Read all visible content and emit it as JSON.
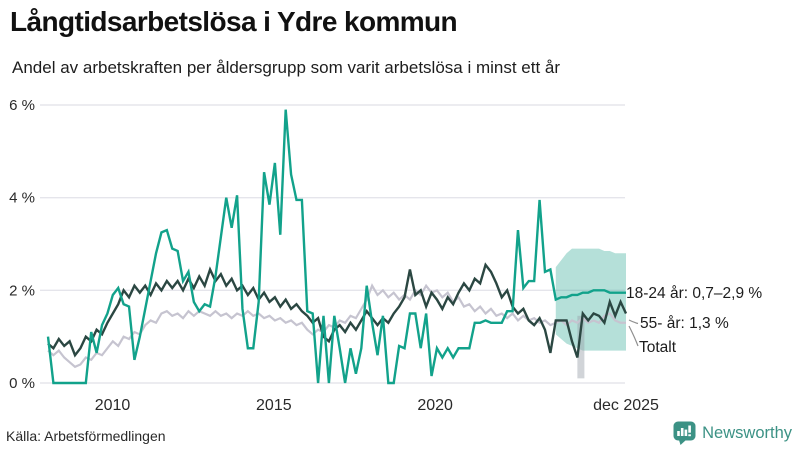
{
  "header": {
    "title": "Långtidsarbetslösa i Ydre kommun",
    "subtitle": "Andel av arbetskraften per åldersgrupp som varit arbetslösa i minst ett år"
  },
  "footer": {
    "source": "Källa: Arbetsförmedlingen",
    "brand": "Newsworthy",
    "brand_color": "#3c9285"
  },
  "chart_data": {
    "type": "line",
    "title": "Långtidsarbetslösa i Ydre kommun",
    "x_start": 2008.0,
    "x_step_years": 0.166667,
    "x_end": 2025.9167,
    "ylim": [
      0,
      6.3
    ],
    "grid": true,
    "y_ticks": [
      {
        "value": 0,
        "label": "0 %"
      },
      {
        "value": 2,
        "label": "2 %"
      },
      {
        "value": 4,
        "label": "4 %"
      },
      {
        "value": 6,
        "label": "6 %"
      }
    ],
    "x_ticks": [
      {
        "year": 2010,
        "label": "2010"
      },
      {
        "year": 2015,
        "label": "2015"
      },
      {
        "year": 2020,
        "label": "2020"
      },
      {
        "year": 2025.9167,
        "label": "dec 2025"
      }
    ],
    "series": [
      {
        "name": "55- år",
        "color": "#c6c4d0",
        "width": 2.2,
        "values": [
          0.7,
          0.6,
          0.7,
          0.55,
          0.45,
          0.35,
          0.4,
          0.55,
          0.5,
          0.65,
          0.6,
          0.75,
          0.9,
          0.8,
          1.0,
          0.95,
          1.1,
          1.05,
          1.25,
          1.35,
          1.3,
          1.5,
          1.55,
          1.45,
          1.5,
          1.4,
          1.55,
          1.45,
          1.55,
          1.5,
          1.45,
          1.55,
          1.45,
          1.5,
          1.4,
          1.5,
          1.45,
          1.55,
          1.45,
          1.5,
          1.4,
          1.45,
          1.35,
          1.4,
          1.3,
          1.35,
          1.25,
          1.3,
          1.15,
          1.05,
          1.15,
          1.1,
          1.25,
          1.2,
          1.35,
          1.3,
          1.45,
          1.4,
          1.6,
          1.8,
          2.1,
          1.9,
          2.0,
          1.85,
          1.95,
          1.8,
          1.9,
          1.8,
          2.0,
          1.9,
          2.1,
          1.95,
          2.0,
          1.85,
          1.95,
          1.75,
          1.85,
          1.65,
          1.7,
          1.55,
          1.65,
          1.5,
          1.6,
          1.45,
          1.5,
          1.4,
          1.5,
          1.35,
          1.45,
          1.35,
          1.4,
          1.3,
          1.35,
          1.25,
          1.3,
          1.35,
          1.25,
          1.35,
          1.3,
          1.4,
          1.3,
          1.35,
          1.3,
          1.45,
          1.5,
          1.35,
          1.3,
          1.3
        ]
      },
      {
        "name": "Totalt",
        "color": "#2b4742",
        "width": 2.4,
        "values": [
          0.85,
          0.75,
          0.95,
          0.8,
          0.9,
          0.6,
          0.75,
          1.0,
          0.9,
          1.15,
          1.05,
          1.3,
          1.5,
          1.7,
          2.0,
          1.85,
          2.1,
          1.95,
          2.1,
          1.9,
          2.15,
          2.0,
          2.2,
          2.05,
          2.2,
          2.0,
          2.25,
          2.05,
          2.3,
          2.1,
          2.45,
          2.2,
          2.35,
          2.1,
          2.25,
          2.0,
          2.1,
          1.9,
          2.05,
          1.8,
          1.95,
          1.75,
          1.85,
          1.65,
          1.8,
          1.6,
          1.7,
          1.55,
          1.45,
          1.3,
          1.4,
          1.0,
          0.9,
          1.15,
          1.25,
          1.1,
          1.3,
          1.15,
          1.35,
          1.55,
          1.4,
          1.25,
          1.4,
          1.3,
          1.5,
          1.65,
          1.85,
          2.45,
          1.9,
          2.0,
          1.65,
          1.95,
          1.8,
          1.6,
          1.85,
          1.7,
          1.95,
          2.15,
          2.0,
          2.25,
          2.15,
          2.55,
          2.4,
          2.15,
          1.85,
          2.0,
          1.65,
          1.5,
          1.6,
          1.35,
          1.25,
          1.4,
          1.15,
          0.65,
          1.35,
          1.35,
          1.35,
          0.9,
          0.55,
          1.5,
          1.35,
          1.5,
          1.45,
          1.3,
          1.75,
          1.45,
          1.75,
          1.5
        ]
      },
      {
        "name": "18-24 år",
        "color": "#12a28b",
        "width": 2.4,
        "values": [
          1.0,
          0,
          0,
          0,
          0,
          0,
          0,
          0,
          1.1,
          0.65,
          1.25,
          1.5,
          1.9,
          2.05,
          1.7,
          1.65,
          0.5,
          1.0,
          1.6,
          2.2,
          2.8,
          3.25,
          3.3,
          2.9,
          2.85,
          2.2,
          2.4,
          1.75,
          1.55,
          1.7,
          1.65,
          2.3,
          3.15,
          4.0,
          3.35,
          4.05,
          1.6,
          0.75,
          0.75,
          1.75,
          4.55,
          3.85,
          4.75,
          3.2,
          5.9,
          4.5,
          3.95,
          3.95,
          1.55,
          1.5,
          0.0,
          1.45,
          0.0,
          1.45,
          0.75,
          0.0,
          0.75,
          0.2,
          0.75,
          2.1,
          1.3,
          0.6,
          1.45,
          0.0,
          0.0,
          0.8,
          0.75,
          1.5,
          1.5,
          0.75,
          1.5,
          0.15,
          0.75,
          0.55,
          0.75,
          0.55,
          0.75,
          0.75,
          0.75,
          1.3,
          1.3,
          1.35,
          1.3,
          1.3,
          1.3,
          1.55,
          1.55,
          3.3,
          2.05,
          2.2,
          2.2,
          3.95,
          2.4,
          2.45,
          1.8,
          1.85,
          1.85,
          1.9,
          1.9,
          1.95,
          1.95,
          2.0,
          2.0,
          2.0,
          1.95,
          1.95,
          1.95,
          1.95
        ]
      }
    ],
    "forecast_band": {
      "series": "18-24 år",
      "start_index": 94,
      "top": [
        2.5,
        2.65,
        2.8,
        2.9,
        2.9,
        2.9,
        2.9,
        2.9,
        2.9,
        2.85,
        2.85,
        2.8,
        2.8,
        2.8
      ],
      "bottom": [
        1.05,
        0.95,
        0.85,
        0.8,
        0.75,
        0.7,
        0.7,
        0.7,
        0.7,
        0.7,
        0.7,
        0.7,
        0.7,
        0.7
      ],
      "color": "#1aa089",
      "opacity": 0.32
    },
    "uncertainty_strip": {
      "series": "Totalt",
      "start_index": 98,
      "end_index": 99.3,
      "top": 1.45,
      "bottom": 0.1,
      "color": "#9aa0a8",
      "opacity": 0.45
    },
    "annotations": [
      {
        "label": "18-24 år: 0,7–2,9 %"
      },
      {
        "label": "55- år: 1,3 %"
      },
      {
        "label": "Totalt"
      }
    ],
    "legend_position": "right-annotations"
  }
}
